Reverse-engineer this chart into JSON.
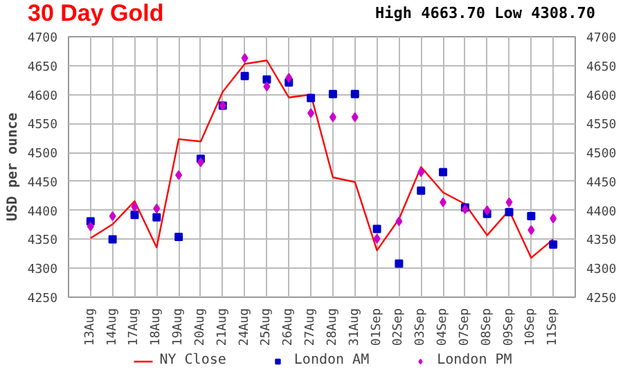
{
  "chart_data": {
    "type": "line",
    "title": "30 Day Gold",
    "subtitle": "High 4663.70 Low 4308.70",
    "ylabel": "USD per ounce",
    "categories": [
      "13Aug",
      "14Aug",
      "17Aug",
      "18Aug",
      "19Aug",
      "20Aug",
      "21Aug",
      "24Aug",
      "25Aug",
      "26Aug",
      "27Aug",
      "28Aug",
      "31Aug",
      "01Sep",
      "02Sep",
      "03Sep",
      "04Sep",
      "07Sep",
      "08Sep",
      "09Sep",
      "10Sep",
      "11Sep"
    ],
    "series": [
      {
        "name": "NY Close",
        "color": "#ff0000",
        "values": [
          4352,
          4376,
          4416,
          4336,
          4523,
          4519,
          4605,
          4653,
          4659,
          4595,
          4600,
          4457,
          4449,
          4331,
          4385,
          4475,
          4431,
          4411,
          4357,
          4400,
          4318,
          4350
        ]
      },
      {
        "name": "London AM",
        "type": "scatter",
        "color": "#0000cc",
        "marker": "square",
        "values": [
          4381,
          4350,
          4392,
          4388,
          4354,
          4489,
          4581,
          4632,
          4626,
          4621,
          4594,
          4601,
          4601,
          4368,
          4308,
          4434,
          4466,
          4405,
          4394,
          4397,
          4390,
          4341
        ]
      },
      {
        "name": "London PM",
        "type": "scatter",
        "color": "#cc00cc",
        "marker": "diamond",
        "values": [
          4372,
          4390,
          4406,
          4403,
          4461,
          4483,
          4581,
          4663,
          4614,
          4629,
          4568,
          4561,
          4561,
          4351,
          4381,
          4466,
          4414,
          4402,
          4400,
          4414,
          4366,
          4386
        ]
      }
    ],
    "ylim": [
      4250,
      4700
    ],
    "yticks": [
      4250,
      4300,
      4350,
      4400,
      4450,
      4500,
      4550,
      4600,
      4650,
      4700
    ],
    "y2lim": [
      4250,
      4700
    ],
    "y2ticks": [
      4250,
      4300,
      4350,
      4400,
      4450,
      4500,
      4550,
      4600,
      4650,
      4700
    ],
    "grid": true,
    "legend": "bottom",
    "line_style": "solid"
  }
}
